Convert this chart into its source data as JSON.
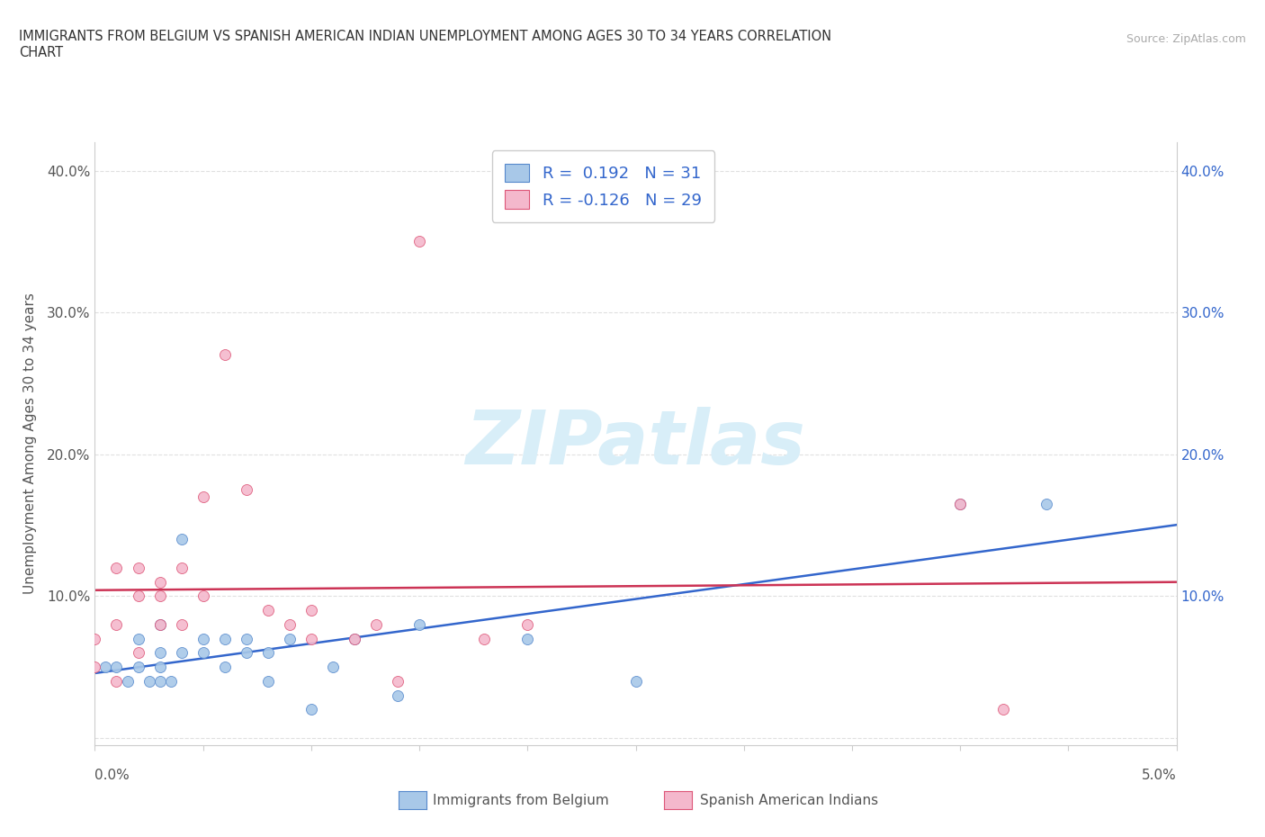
{
  "title_line1": "IMMIGRANTS FROM BELGIUM VS SPANISH AMERICAN INDIAN UNEMPLOYMENT AMONG AGES 30 TO 34 YEARS CORRELATION",
  "title_line2": "CHART",
  "source": "Source: ZipAtlas.com",
  "ylabel": "Unemployment Among Ages 30 to 34 years",
  "xlim": [
    0.0,
    0.05
  ],
  "ylim": [
    -0.005,
    0.42
  ],
  "yticks": [
    0.0,
    0.1,
    0.2,
    0.3,
    0.4
  ],
  "ytick_labels_left": [
    "",
    "10.0%",
    "20.0%",
    "30.0%",
    "40.0%"
  ],
  "ytick_labels_right": [
    "",
    "10.0%",
    "20.0%",
    "30.0%",
    "40.0%"
  ],
  "r_blue": 0.192,
  "n_blue": 31,
  "r_pink": -0.126,
  "n_pink": 29,
  "blue_scatter_x": [
    0.0005,
    0.001,
    0.0015,
    0.002,
    0.002,
    0.0025,
    0.003,
    0.003,
    0.003,
    0.003,
    0.0035,
    0.004,
    0.004,
    0.005,
    0.005,
    0.006,
    0.006,
    0.007,
    0.007,
    0.008,
    0.008,
    0.009,
    0.01,
    0.011,
    0.012,
    0.014,
    0.015,
    0.02,
    0.025,
    0.04,
    0.044
  ],
  "blue_scatter_y": [
    0.05,
    0.05,
    0.04,
    0.05,
    0.07,
    0.04,
    0.06,
    0.08,
    0.04,
    0.05,
    0.04,
    0.06,
    0.14,
    0.07,
    0.06,
    0.05,
    0.07,
    0.06,
    0.07,
    0.06,
    0.04,
    0.07,
    0.02,
    0.05,
    0.07,
    0.03,
    0.08,
    0.07,
    0.04,
    0.165,
    0.165
  ],
  "pink_scatter_x": [
    0.0,
    0.0,
    0.001,
    0.001,
    0.001,
    0.002,
    0.002,
    0.002,
    0.003,
    0.003,
    0.003,
    0.004,
    0.004,
    0.005,
    0.005,
    0.006,
    0.007,
    0.008,
    0.009,
    0.01,
    0.01,
    0.012,
    0.013,
    0.014,
    0.015,
    0.018,
    0.02,
    0.04,
    0.042
  ],
  "pink_scatter_y": [
    0.05,
    0.07,
    0.04,
    0.08,
    0.12,
    0.1,
    0.12,
    0.06,
    0.08,
    0.1,
    0.11,
    0.08,
    0.12,
    0.17,
    0.1,
    0.27,
    0.175,
    0.09,
    0.08,
    0.07,
    0.09,
    0.07,
    0.08,
    0.04,
    0.35,
    0.07,
    0.08,
    0.165,
    0.02
  ],
  "blue_scatter_color": "#a8c8e8",
  "pink_scatter_color": "#f4b8cc",
  "blue_line_color": "#3366cc",
  "pink_line_color": "#cc3355",
  "blue_edge_color": "#5588cc",
  "pink_edge_color": "#dd5577",
  "watermark_color": "#d8eef8",
  "background_color": "#ffffff",
  "grid_color": "#e0e0e0",
  "title_color": "#333333",
  "label_color": "#555555"
}
